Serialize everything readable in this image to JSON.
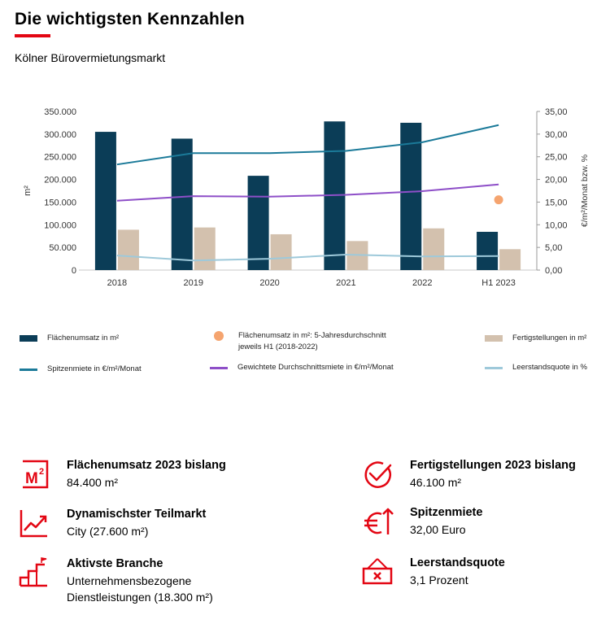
{
  "header": {
    "title": "Die wichtigsten Kennzahlen",
    "subtitle": "Kölner Bürovermietungsmarkt",
    "accent_color": "#e30613"
  },
  "chart_data": {
    "type": "bar",
    "categories": [
      "2018",
      "2019",
      "2020",
      "2021",
      "2022",
      "H1 2023"
    ],
    "y_left": {
      "label": "m²",
      "ylim": [
        0,
        350000
      ],
      "ticks": [
        "0",
        "50.000",
        "100.000",
        "150.000",
        "200.000",
        "250.000",
        "300.000",
        "350.000"
      ]
    },
    "y_right": {
      "label": "€/m²/Monat bzw. %",
      "ylim": [
        0,
        35
      ],
      "ticks": [
        "0,00",
        "5,00",
        "10,00",
        "15,00",
        "20,00",
        "25,00",
        "30,00",
        "35,00"
      ]
    },
    "series": [
      {
        "name": "Flächenumsatz in m²",
        "type": "bar",
        "axis": "left",
        "color": "#0b3d57",
        "values": [
          305000,
          290000,
          208000,
          328000,
          325000,
          84400
        ]
      },
      {
        "name": "Fertigstellungen in m²",
        "type": "bar",
        "axis": "left",
        "color": "#d3c1ae",
        "values": [
          89000,
          94000,
          79000,
          64000,
          92000,
          46100
        ]
      },
      {
        "name": "Spitzenmiete in €/m²/Monat",
        "type": "line",
        "axis": "right",
        "color": "#1b7a99",
        "values": [
          23.3,
          25.8,
          25.8,
          26.3,
          28.2,
          32.0
        ]
      },
      {
        "name": "Gewichtete Durchschnittsmiete in €/m²/Monat",
        "type": "line",
        "axis": "right",
        "color": "#8e4fc8",
        "values": [
          15.3,
          16.3,
          16.2,
          16.6,
          17.4,
          18.9
        ]
      },
      {
        "name": "Leerstandsquote in %",
        "type": "line",
        "axis": "right",
        "color": "#9ec9da",
        "values": [
          3.2,
          2.1,
          2.5,
          3.4,
          3.0,
          3.1
        ]
      },
      {
        "name": "Flächenumsatz in m²: 5-Jahresdurchschnitt jeweils H1 (2018-2022)",
        "type": "scatter",
        "axis": "left",
        "color": "#f5a46f",
        "points": [
          {
            "x": "H1 2023",
            "y": 155000
          }
        ]
      }
    ]
  },
  "legend": [
    {
      "label": "Flächenumsatz in m²",
      "kind": "bar",
      "color": "#0b3d57"
    },
    {
      "label": "Flächenumsatz in m²: 5-Jahresdurchschnitt jeweils H1 (2018-2022)",
      "kind": "dot",
      "color": "#f5a46f"
    },
    {
      "label": "Fertigstellungen in m²",
      "kind": "bar",
      "color": "#d3c1ae"
    },
    {
      "label": "Spitzenmiete in €/m²/Monat",
      "kind": "line",
      "color": "#1b7a99"
    },
    {
      "label": "Gewichtete Durchschnittsmiete in €/m²/Monat",
      "kind": "line",
      "color": "#8e4fc8"
    },
    {
      "label": "Leerstandsquote in %",
      "kind": "line",
      "color": "#9ec9da"
    }
  ],
  "kpis": [
    {
      "icon": "square-meter-icon",
      "title": "Flächenumsatz 2023 bislang",
      "value": "84.400 m²"
    },
    {
      "icon": "check-circle-icon",
      "title": "Fertigstellungen 2023 bislang",
      "value": "46.100 m²"
    },
    {
      "icon": "trend-chart-icon",
      "title": "Dynamischster Teilmarkt",
      "value": "City (27.600 m²)"
    },
    {
      "icon": "euro-up-icon",
      "title": "Spitzenmiete",
      "value": "32,00 Euro"
    },
    {
      "icon": "podium-icon",
      "title": "Aktivste Branche",
      "value": "Unternehmensbezogene Dienstleistungen (18.300 m²)"
    },
    {
      "icon": "vacancy-sign-icon",
      "title": "Leerstandsquote",
      "value": "3,1 Prozent"
    }
  ]
}
